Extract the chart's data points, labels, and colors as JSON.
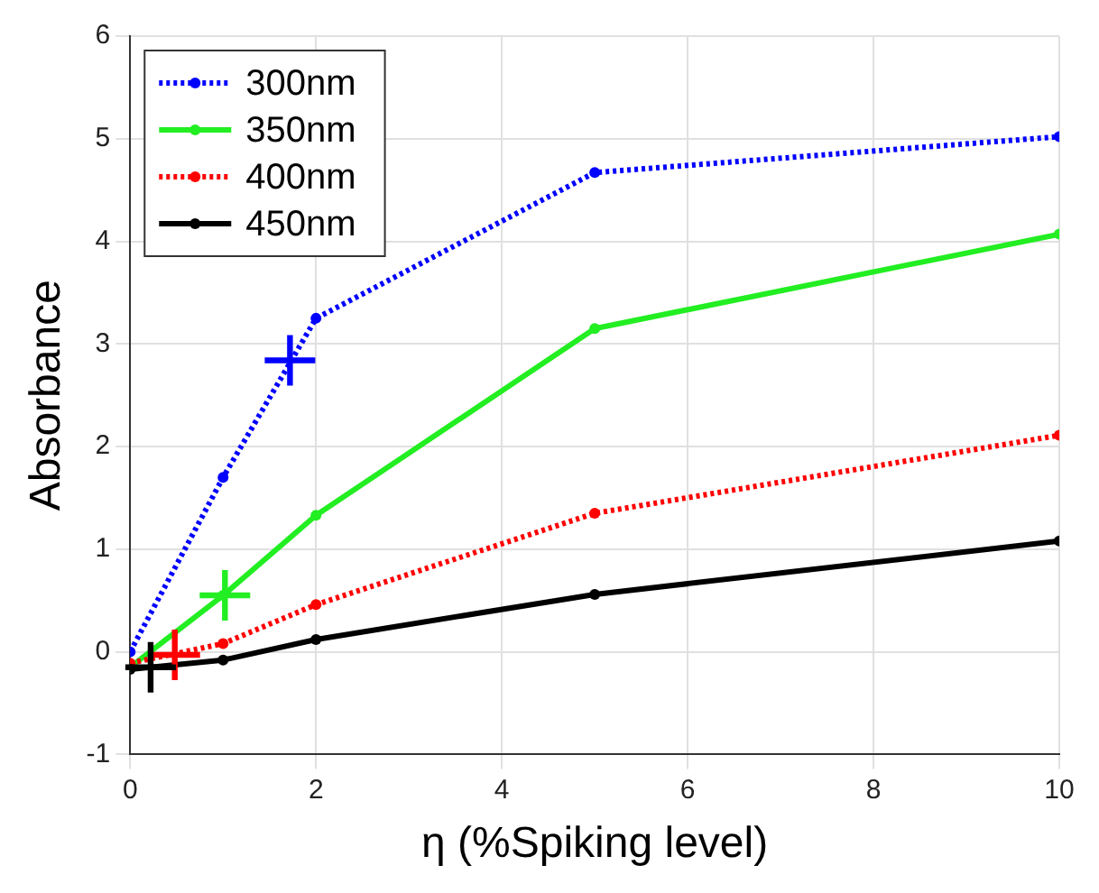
{
  "chart_data": {
    "type": "line",
    "xlabel": "η (%Spiking level)",
    "ylabel": "Absorbance",
    "x": [
      0,
      1,
      2,
      5,
      10
    ],
    "series": [
      {
        "name": "300nm",
        "color": "#0000ff",
        "values": [
          0,
          1.7,
          3.25,
          4.67,
          5.02
        ],
        "line_style": "dotted"
      },
      {
        "name": "350nm",
        "color": "#22ee22",
        "values": [
          -0.15,
          0.55,
          1.33,
          3.15,
          4.07
        ],
        "line_style": "solid"
      },
      {
        "name": "400nm",
        "color": "#ff0000",
        "values": [
          -0.11,
          0.08,
          0.46,
          1.35,
          2.11
        ],
        "line_style": "dotted"
      },
      {
        "name": "450nm",
        "color": "#000000",
        "values": [
          -0.17,
          -0.08,
          0.12,
          0.56,
          1.08
        ],
        "line_style": "solid"
      },
      {
        "type": "scatter",
        "color": "#0000ff",
        "x": [
          1.72
        ],
        "values": [
          2.84
        ],
        "marker": "cross"
      },
      {
        "type": "scatter",
        "color": "#22ee22",
        "x": [
          1.02
        ],
        "values": [
          0.55
        ],
        "marker": "cross"
      },
      {
        "type": "scatter",
        "color": "#ff0000",
        "x": [
          0.48
        ],
        "values": [
          -0.03
        ],
        "marker": "cross"
      },
      {
        "type": "scatter",
        "color": "#000000",
        "x": [
          0.22
        ],
        "values": [
          -0.15
        ],
        "marker": "cross"
      }
    ],
    "marker": "circle",
    "xlim": [
      0,
      10
    ],
    "xticks": [
      0,
      2,
      4,
      6,
      8,
      10
    ],
    "ylim": [
      -1,
      6
    ],
    "yticks": [
      -1,
      0,
      1,
      2,
      3,
      4,
      5,
      6
    ],
    "grid": true,
    "legend": "top left"
  }
}
